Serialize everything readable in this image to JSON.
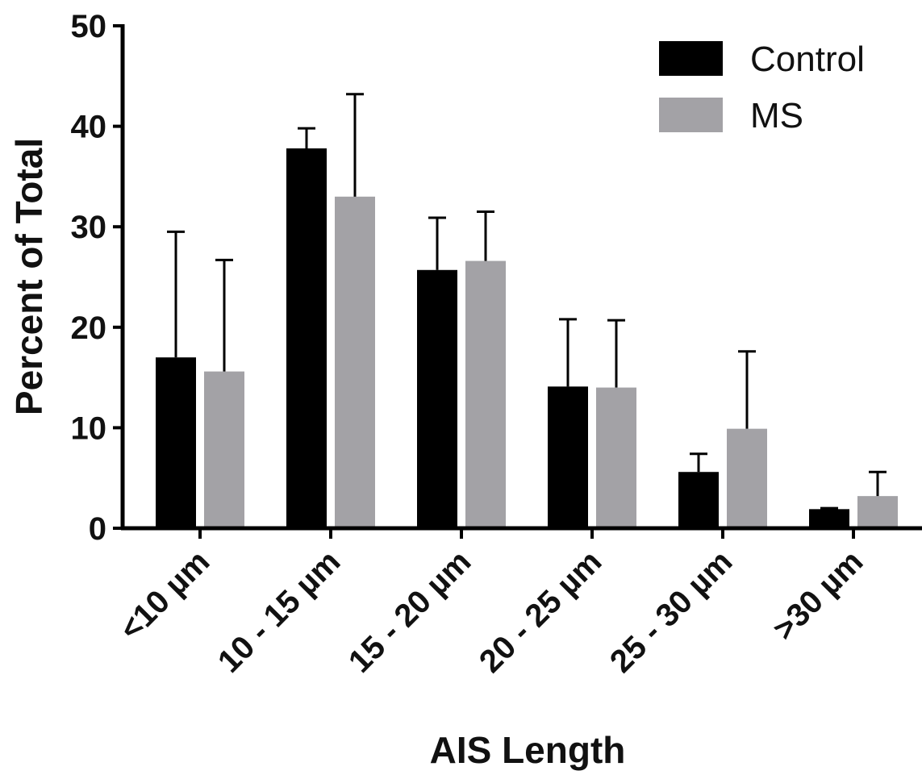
{
  "chart_data": {
    "type": "bar",
    "title": "",
    "xlabel": "AIS Length",
    "ylabel": "Percent of Total",
    "ylim": [
      0,
      50
    ],
    "yticks": [
      0,
      10,
      20,
      30,
      40,
      50
    ],
    "categories": [
      "<10 µm",
      "10 - 15 µm",
      "15 - 20 µm",
      "20 - 25 µm",
      "25 - 30 µm",
      ">30 µm"
    ],
    "series": [
      {
        "name": "Control",
        "color": "#000000",
        "values": [
          17.0,
          37.8,
          25.7,
          14.1,
          5.6,
          1.9
        ],
        "error_plus": [
          12.5,
          2.0,
          5.2,
          6.7,
          1.8,
          0.1
        ]
      },
      {
        "name": "MS",
        "color": "#a3a2a6",
        "values": [
          15.6,
          33.0,
          26.6,
          14.0,
          9.9,
          3.2
        ],
        "error_plus": [
          11.1,
          10.2,
          4.9,
          6.7,
          7.7,
          2.4
        ]
      }
    ],
    "legend": "top-right",
    "grid": false
  }
}
